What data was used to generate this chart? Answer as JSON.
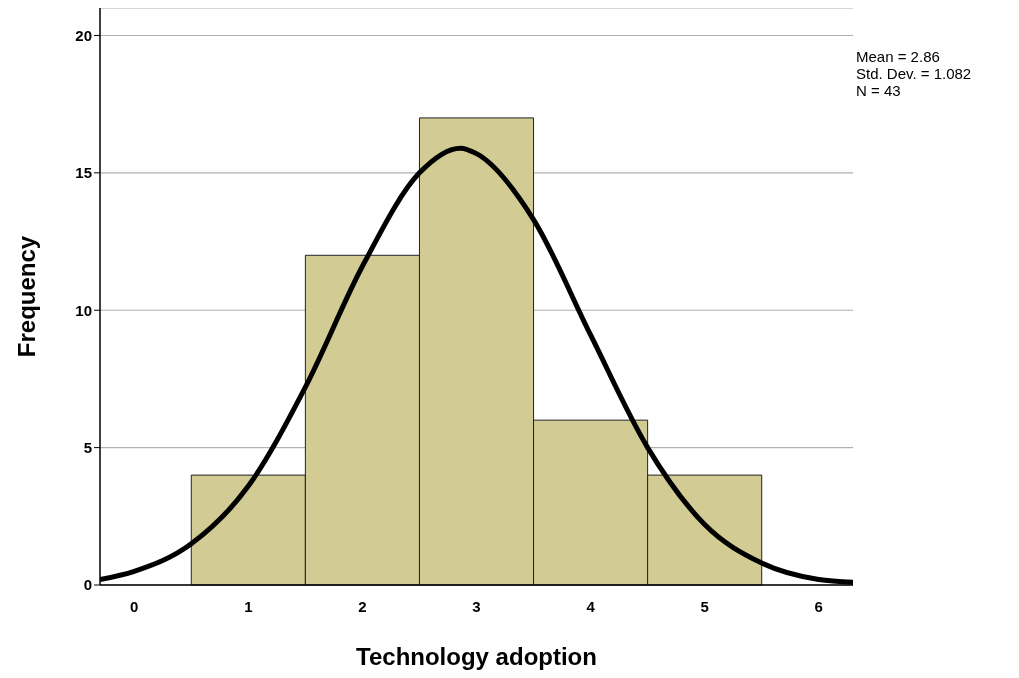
{
  "chart_data": {
    "type": "histogram",
    "xlabel": "Technology adoption",
    "ylabel": "Frequency",
    "bins": [
      0.5,
      1.5,
      2.5,
      3.5,
      4.5,
      5.5
    ],
    "values": [
      4,
      12,
      17,
      6,
      4
    ],
    "color": "#d2cc94",
    "series": [
      {
        "type": "line",
        "color": "#000000",
        "x": [
          -0.3,
          0,
          0.5,
          1,
          1.5,
          2,
          2.5,
          2.86,
          3,
          3.5,
          4,
          4.5,
          5,
          5.5,
          6,
          6.3
        ],
        "values": [
          0.2,
          0.5,
          1.5,
          3.6,
          7.2,
          11.6,
          15.0,
          15.9,
          15.7,
          13.3,
          9.1,
          5.0,
          2.2,
          0.8,
          0.2,
          0.1
        ]
      }
    ],
    "xlim": [
      -0.3,
      6.3
    ],
    "xticks": [
      0,
      1,
      2,
      3,
      4,
      5,
      6
    ],
    "ylim": [
      0,
      21
    ],
    "yticks": [
      0,
      5,
      10,
      15,
      20
    ],
    "grid": "y",
    "marker": "none",
    "line_style": "solid",
    "annotations": [
      "Mean = 2.86",
      "Std. Dev. = 1.082",
      "N = 43"
    ]
  }
}
